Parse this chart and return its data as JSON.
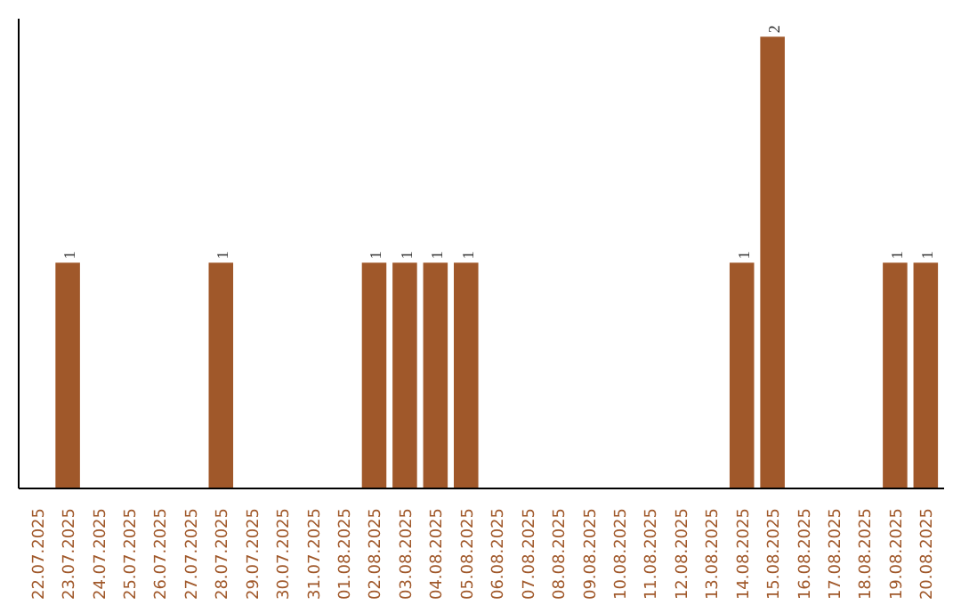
{
  "chart_data": {
    "type": "bar",
    "categories": [
      "22.07.2025",
      "23.07.2025",
      "24.07.2025",
      "25.07.2025",
      "26.07.2025",
      "27.07.2025",
      "28.07.2025",
      "29.07.2025",
      "30.07.2025",
      "31.07.2025",
      "01.08.2025",
      "02.08.2025",
      "03.08.2025",
      "04.08.2025",
      "05.08.2025",
      "06.08.2025",
      "07.08.2025",
      "08.08.2025",
      "09.08.2025",
      "10.08.2025",
      "11.08.2025",
      "12.08.2025",
      "13.08.2025",
      "14.08.2025",
      "15.08.2025",
      "16.08.2025",
      "17.08.2025",
      "18.08.2025",
      "19.08.2025",
      "20.08.2025"
    ],
    "values": [
      0,
      1,
      0,
      0,
      0,
      0,
      1,
      0,
      0,
      0,
      0,
      1,
      1,
      1,
      1,
      0,
      0,
      0,
      0,
      0,
      0,
      0,
      0,
      1,
      2,
      0,
      0,
      0,
      1,
      1
    ],
    "value_labels": [
      null,
      "1",
      null,
      null,
      null,
      null,
      "1",
      null,
      null,
      null,
      null,
      "1",
      "1",
      "1",
      "1",
      null,
      null,
      null,
      null,
      null,
      null,
      null,
      null,
      "1",
      "2",
      null,
      null,
      null,
      "1",
      "1"
    ],
    "color": "#a0582a",
    "grid": false
  }
}
